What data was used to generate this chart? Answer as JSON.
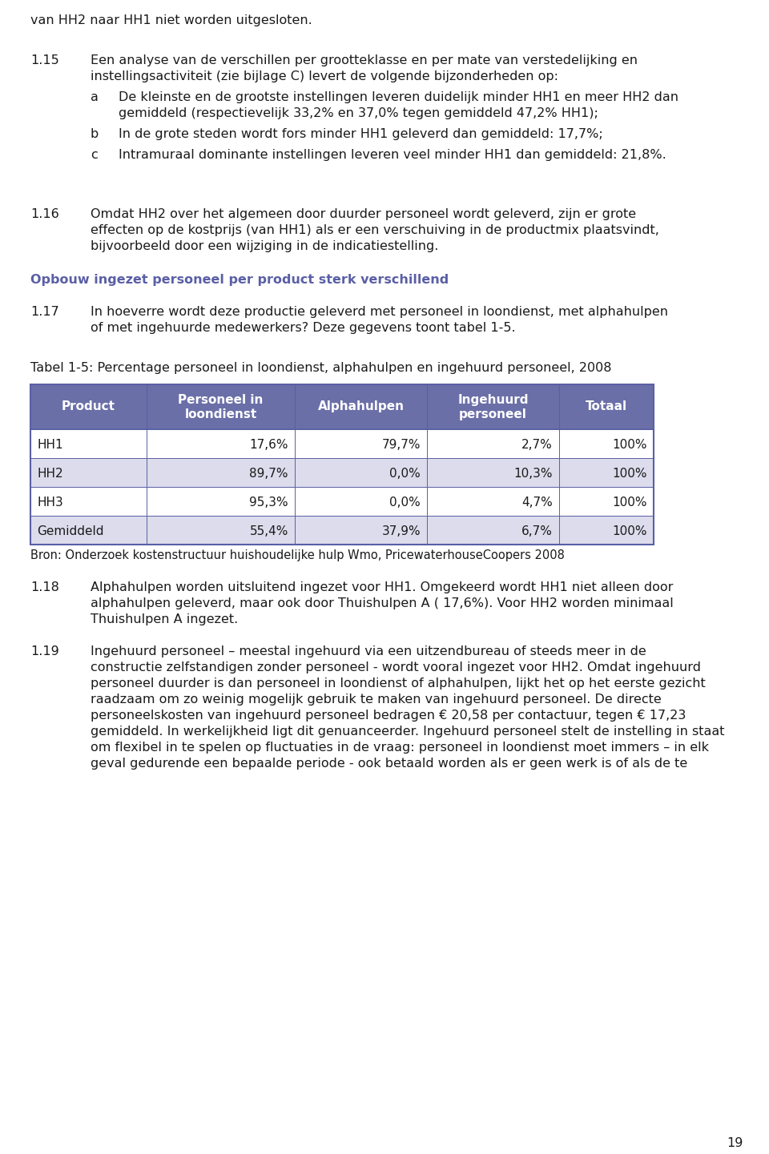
{
  "page_number": "19",
  "background_color": "#ffffff",
  "top_text": "van HH2 naar HH1 niet worden uitgesloten.",
  "paragraph_115_number": "1.15",
  "paragraph_115_line1": "Een analyse van de verschillen per grootteklasse en per mate van verstedelijking en",
  "paragraph_115_line2": "instellingsactiviteit (zie bijlage C) levert de volgende bijzonderheden op:",
  "bullet_a_label": "a",
  "bullet_a_line1": "De kleinste en de grootste instellingen leveren duidelijk minder HH1 en meer HH2 dan",
  "bullet_a_line2": "gemiddeld (respectievelijk 33,2% en 37,0% tegen gemiddeld 47,2% HH1);",
  "bullet_b_label": "b",
  "bullet_b_line1": "In de grote steden wordt fors minder HH1 geleverd dan gemiddeld: 17,7%;",
  "bullet_c_label": "c",
  "bullet_c_line1": "Intramuraal dominante instellingen leveren veel minder HH1 dan gemiddeld: 21,8%.",
  "paragraph_116_number": "1.16",
  "paragraph_116_line1": "Omdat HH2 over het algemeen door duurder personeel wordt geleverd, zijn er grote",
  "paragraph_116_line2": "effecten op de kostprijs (van HH1) als er een verschuiving in de productmix plaatsvindt,",
  "paragraph_116_line3": "bijvoorbeeld door een wijziging in de indicatiestelling.",
  "section_header": "Opbouw ingezet personeel per product sterk verschillend",
  "section_header_color": "#5a5fa5",
  "paragraph_117_number": "1.17",
  "paragraph_117_line1": "In hoeverre wordt deze productie geleverd met personeel in loondienst, met alphahulpen",
  "paragraph_117_line2": "of met ingehuurde medewerkers? Deze gegevens toont tabel 1-5.",
  "table_title": "Tabel 1-5: Percentage personeel in loondienst, alphahulpen en ingehuurd personeel, 2008",
  "table_header_bg": "#6b6fa8",
  "table_header_color": "#ffffff",
  "table_row_bgs": [
    "#ffffff",
    "#dcdcec",
    "#ffffff",
    "#dcdcec"
  ],
  "table_border_color": "#5a5fa5",
  "table_headers": [
    "Product",
    "Personeel in\nloondienst",
    "Alphahulpen",
    "Ingehuurd\npersoneel",
    "Totaal"
  ],
  "table_rows": [
    [
      "HH1",
      "17,6%",
      "79,7%",
      "2,7%",
      "100%"
    ],
    [
      "HH2",
      "89,7%",
      "0,0%",
      "10,3%",
      "100%"
    ],
    [
      "HH3",
      "95,3%",
      "0,0%",
      "4,7%",
      "100%"
    ],
    [
      "Gemiddeld",
      "55,4%",
      "37,9%",
      "6,7%",
      "100%"
    ]
  ],
  "table_source": "Bron: Onderzoek kostenstructuur huishoudelijke hulp Wmo, PricewaterhouseCoopers 2008",
  "paragraph_118_number": "1.18",
  "paragraph_118_line1": "Alphahulpen worden uitsluitend ingezet voor HH1. Omgekeerd wordt HH1 niet alleen door",
  "paragraph_118_line2": "alphahulpen geleverd, maar ook door Thuishulpen A ( 17,6%). Voor HH2 worden minimaal",
  "paragraph_118_line3": "Thuishulpen A ingezet.",
  "paragraph_119_number": "1.19",
  "paragraph_119_line1": "Ingehuurd personeel – meestal ingehuurd via een uitzendbureau of steeds meer in de",
  "paragraph_119_line2": "constructie zelfstandigen zonder personeel - wordt vooral ingezet voor HH2. Omdat ingehuurd",
  "paragraph_119_line3": "personeel duurder is dan personeel in loondienst of alphahulpen, lijkt het op het eerste gezicht",
  "paragraph_119_line4": "raadzaam om zo weinig mogelijk gebruik te maken van ingehuurd personeel. De directe",
  "paragraph_119_line5": "personeelskosten van ingehuurd personeel bedragen € 20,58 per contactuur, tegen € 17,23",
  "paragraph_119_line6": "gemiddeld. In werkelijkheid ligt dit genuanceerder. Ingehuurd personeel stelt de instelling in staat",
  "paragraph_119_line7": "om flexibel in te spelen op fluctuaties in de vraag: personeel in loondienst moet immers – in elk",
  "paragraph_119_line8": "geval gedurende een bepaalde periode - ook betaald worden als er geen werk is of als de te"
}
